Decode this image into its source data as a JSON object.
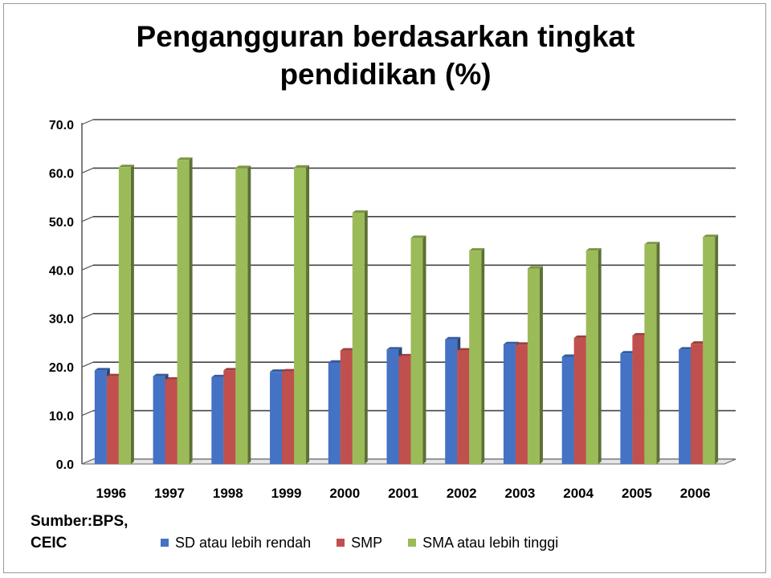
{
  "chart_data": {
    "type": "bar",
    "title_lines": [
      "Pengangguran berdasarkan tingkat",
      "pendidikan (%)"
    ],
    "categories": [
      "1996",
      "1997",
      "1998",
      "1999",
      "2000",
      "2001",
      "2002",
      "2003",
      "2004",
      "2005",
      "2006"
    ],
    "series": [
      {
        "name": "SD atau  lebih rendah",
        "color": "#4472C4",
        "values": [
          19.3,
          18.1,
          17.9,
          19.0,
          20.9,
          23.6,
          25.7,
          24.7,
          22.1,
          22.8,
          23.6
        ]
      },
      {
        "name": "SMP",
        "color": "#C0504D",
        "values": [
          18.1,
          17.4,
          19.3,
          19.1,
          23.4,
          22.2,
          23.4,
          24.6,
          26.0,
          26.5,
          24.8
        ]
      },
      {
        "name": "SMA atau  lebih tinggi",
        "color": "#9BBB59",
        "values": [
          61.2,
          62.7,
          61.0,
          61.1,
          51.8,
          46.6,
          44.0,
          40.3,
          44.0,
          45.3,
          46.8
        ]
      }
    ],
    "ylim": [
      0,
      70
    ],
    "yticks": [
      "0.0",
      "10.0",
      "20.0",
      "30.0",
      "40.0",
      "50.0",
      "60.0",
      "70.0"
    ],
    "grid": true,
    "legend_position": "bottom"
  },
  "source_lines": [
    "Sumber:BPS,",
    "CEIC"
  ]
}
